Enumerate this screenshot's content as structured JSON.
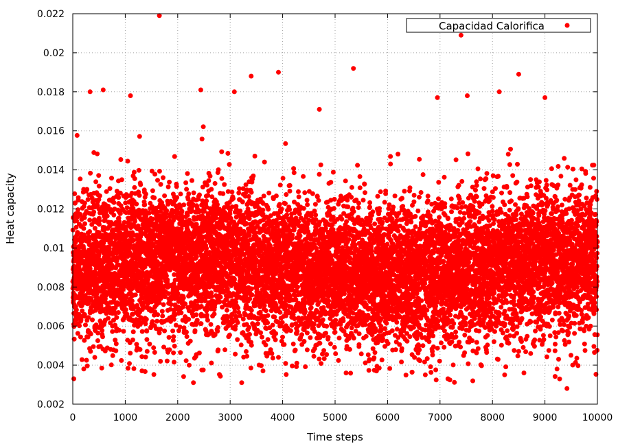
{
  "chart_data": {
    "type": "scatter",
    "title": "",
    "xlabel": "Time steps",
    "ylabel": "Heat capacity",
    "xlim": [
      0,
      10000
    ],
    "ylim": [
      0.002,
      0.022
    ],
    "xticks": [
      "0",
      "1000",
      "2000",
      "3000",
      "4000",
      "5000",
      "6000",
      "7000",
      "8000",
      "9000",
      "10000"
    ],
    "yticks": [
      "0.002",
      "0.004",
      "0.006",
      "0.008",
      "0.01",
      "0.012",
      "0.014",
      "0.016",
      "0.018",
      "0.02",
      "0.022"
    ],
    "grid": true,
    "legend_position": "top-right",
    "series": [
      {
        "name": "Capacidad Calorifica",
        "color": "#ff0000",
        "marker": "circle",
        "num_points": 10000,
        "distribution": "random scatter centred near 0.009, most points between 0.005 and 0.013",
        "x": [
          1650,
          7400,
          3920,
          5350,
          8500,
          2440,
          580,
          330,
          3080,
          3400,
          9000,
          7520,
          6950,
          8130,
          9230,
          2300,
          3220,
          9420,
          20,
          6720,
          8600,
          7150,
          1100,
          4700
        ],
        "y": [
          0.0219,
          0.0209,
          0.019,
          0.0192,
          0.0189,
          0.0181,
          0.0181,
          0.018,
          0.018,
          0.0188,
          0.0177,
          0.0178,
          0.0177,
          0.018,
          0.0038,
          0.0031,
          0.0031,
          0.0028,
          0.0033,
          0.0035,
          0.0036,
          0.0033,
          0.0178,
          0.0171
        ]
      }
    ]
  }
}
